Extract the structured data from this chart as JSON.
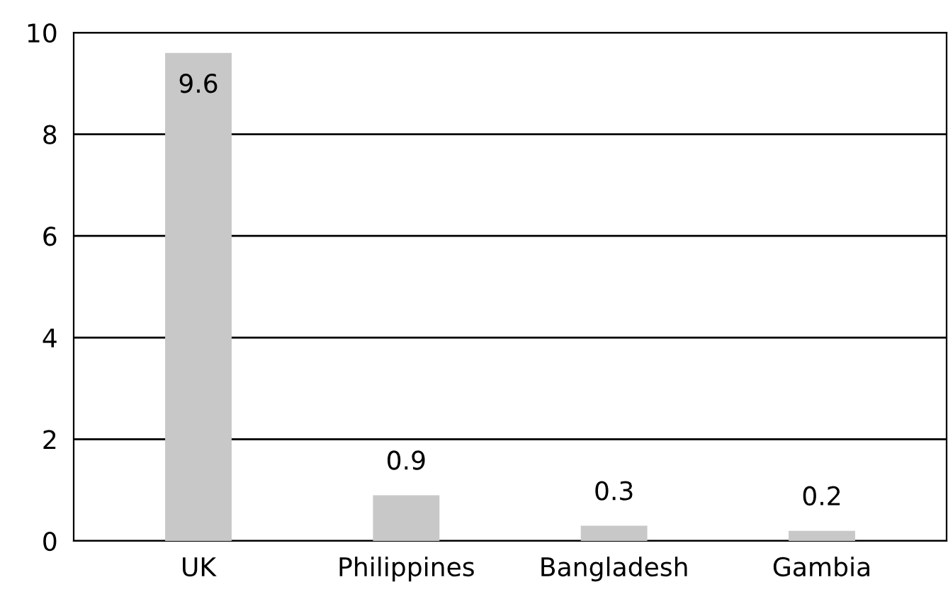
{
  "chart_data": {
    "type": "bar",
    "categories": [
      "UK",
      "Philippines",
      "Bangladesh",
      "Gambia"
    ],
    "values": [
      9.6,
      0.9,
      0.3,
      0.2
    ],
    "color": "#c8c8c8",
    "ylim": [
      0,
      10
    ],
    "yticks": [
      0,
      2,
      4,
      6,
      8,
      10
    ],
    "grid": "y",
    "data_labels": true
  }
}
